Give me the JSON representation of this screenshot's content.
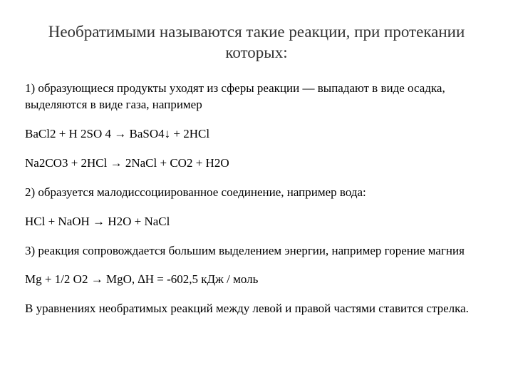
{
  "title_fontsize": 23,
  "body_fontsize": 17,
  "title_color": "#333333",
  "body_color": "#000000",
  "background_color": "#ffffff",
  "font_family": "Georgia, 'Times New Roman', serif",
  "title": "Необратимыми называются такие реакции, при протекании которых:",
  "paragraphs": [
    "1) образующиеся продукты уходят из сферы реакции — выпадают в виде осадка, выделяются в виде газа, например",
    "ВаСl2 + Н 2SО 4 → ВаSО4↓ + 2НСl",
    "Na2CO3 + 2HCl → 2NaCl + CO2  + H2O",
    "2) образуется малодиссоциированное соединение, например вода:",
    "НСl + NаОН → Н2О + NаСl",
    "3) реакция сопровождается большим выделением энергии, например горение магния",
    "Mg + 1/2 О2 → МgО, ∆Н = -602,5 кДж / моль",
    "В уравнениях необратимых реакций между левой и правой частями ставится стрелка."
  ]
}
